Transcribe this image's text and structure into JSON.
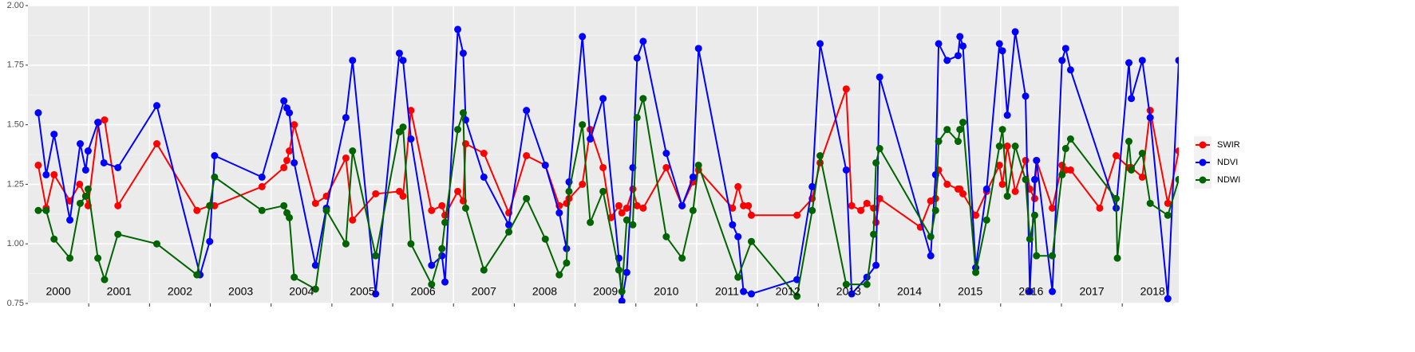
{
  "chart_data": {
    "type": "line",
    "xlim": [
      2000,
      2018.93
    ],
    "xticks": [
      2001,
      2002,
      2003,
      2004,
      2005,
      2006,
      2007,
      2008,
      2009,
      2010,
      2011,
      2012,
      2013,
      2014,
      2015,
      2016,
      2017,
      2018
    ],
    "year_labels": [
      "2000",
      "2001",
      "2002",
      "2003",
      "2004",
      "2005",
      "2006",
      "2007",
      "2008",
      "2009",
      "2010",
      "2011",
      "2012",
      "2013",
      "2014",
      "2015",
      "2016",
      "2017",
      "2018"
    ],
    "ylim": [
      0.75,
      2.0
    ],
    "yticks": [
      {
        "value": 0.75,
        "label": "0.75"
      },
      {
        "value": 1.0,
        "label": "1.00"
      },
      1.25,
      {
        "value": 1.5,
        "label": "1.50"
      },
      1.75,
      {
        "value": 2.0,
        "label": "2.00"
      }
    ],
    "grid": true,
    "legend": "right",
    "series": [
      {
        "name": "SWIR",
        "color": "#ff0000",
        "x": [
          2000.17,
          2000.3,
          2000.43,
          2000.69,
          2000.85,
          2000.95,
          2000.99,
          2001.16,
          2001.26,
          2001.48,
          2002.12,
          2002.78,
          2002.99,
          2003.07,
          2003.85,
          2004.21,
          2004.26,
          2004.3,
          2004.38,
          2004.73,
          2004.91,
          2005.23,
          2005.34,
          2005.72,
          2006.11,
          2006.17,
          2006.3,
          2006.64,
          2006.81,
          2006.86,
          2007.07,
          2007.16,
          2007.2,
          2007.5,
          2007.91,
          2008.2,
          2008.51,
          2008.74,
          2008.86,
          2008.9,
          2009.12,
          2009.25,
          2009.46,
          2009.59,
          2009.72,
          2009.77,
          2009.85,
          2009.95,
          2010.02,
          2010.12,
          2010.5,
          2010.76,
          2010.94,
          2011.03,
          2011.59,
          2011.68,
          2011.77,
          2011.85,
          2011.9,
          2012.65,
          2012.9,
          2013.03,
          2013.46,
          2013.55,
          2013.7,
          2013.8,
          2013.91,
          2013.95,
          2014.01,
          2014.68,
          2014.85,
          2014.93,
          2014.98,
          2015.12,
          2015.3,
          2015.33,
          2015.38,
          2015.59,
          2015.77,
          2015.98,
          2016.03,
          2016.11,
          2016.24,
          2016.41,
          2016.48,
          2016.56,
          2016.59,
          2016.85,
          2017.01,
          2017.07,
          2017.15,
          2017.63,
          2017.9,
          2018.11,
          2018.15,
          2018.33,
          2018.46,
          2018.75,
          2018.93
        ],
        "values": [
          1.33,
          1.15,
          1.29,
          1.18,
          1.25,
          1.2,
          1.16,
          1.51,
          1.52,
          1.16,
          1.42,
          1.14,
          1.16,
          1.16,
          1.24,
          1.32,
          1.35,
          1.39,
          1.5,
          1.17,
          1.2,
          1.36,
          1.1,
          1.21,
          1.22,
          1.2,
          1.56,
          1.14,
          1.16,
          1.12,
          1.22,
          1.18,
          1.42,
          1.38,
          1.13,
          1.37,
          1.33,
          1.16,
          1.17,
          1.19,
          1.25,
          1.48,
          1.32,
          1.11,
          1.16,
          1.13,
          1.15,
          1.23,
          1.16,
          1.15,
          1.32,
          1.16,
          1.26,
          1.31,
          1.15,
          1.24,
          1.16,
          1.16,
          1.12,
          1.12,
          1.19,
          1.34,
          1.65,
          1.16,
          1.14,
          1.17,
          1.15,
          1.09,
          1.19,
          1.07,
          1.18,
          1.19,
          1.31,
          1.25,
          1.23,
          1.23,
          1.21,
          1.12,
          1.22,
          1.33,
          1.25,
          1.41,
          1.22,
          1.35,
          1.23,
          1.19,
          1.35,
          1.15,
          1.33,
          1.31,
          1.31,
          1.15,
          1.37,
          1.32,
          1.32,
          1.28,
          1.56,
          1.17,
          1.39
        ]
      },
      {
        "name": "NDVI",
        "color": "#0000ff",
        "x": [
          2000.17,
          2000.3,
          2000.43,
          2000.69,
          2000.86,
          2000.95,
          2000.99,
          2001.15,
          2001.25,
          2001.48,
          2002.12,
          2002.83,
          2002.99,
          2003.07,
          2003.85,
          2004.21,
          2004.26,
          2004.3,
          2004.38,
          2004.73,
          2004.91,
          2005.23,
          2005.34,
          2005.72,
          2006.11,
          2006.17,
          2006.3,
          2006.64,
          2006.81,
          2006.86,
          2007.07,
          2007.16,
          2007.2,
          2007.5,
          2007.91,
          2008.2,
          2008.51,
          2008.74,
          2008.86,
          2008.9,
          2009.12,
          2009.25,
          2009.46,
          2009.72,
          2009.77,
          2009.85,
          2009.95,
          2010.02,
          2010.12,
          2010.5,
          2010.76,
          2010.94,
          2011.03,
          2011.59,
          2011.68,
          2011.77,
          2011.9,
          2012.65,
          2012.9,
          2013.03,
          2013.46,
          2013.55,
          2013.8,
          2013.95,
          2014.01,
          2014.85,
          2014.93,
          2014.98,
          2015.12,
          2015.3,
          2015.33,
          2015.38,
          2015.59,
          2015.77,
          2015.98,
          2016.03,
          2016.11,
          2016.24,
          2016.41,
          2016.48,
          2016.56,
          2016.59,
          2016.85,
          2017.01,
          2017.07,
          2017.15,
          2017.9,
          2018.11,
          2018.15,
          2018.33,
          2018.46,
          2018.75,
          2018.93
        ],
        "values": [
          1.55,
          1.29,
          1.46,
          1.1,
          1.42,
          1.31,
          1.39,
          1.51,
          1.34,
          1.32,
          1.58,
          0.87,
          1.01,
          1.37,
          1.28,
          1.6,
          1.57,
          1.55,
          1.34,
          0.91,
          1.15,
          1.53,
          1.77,
          0.79,
          1.8,
          1.77,
          1.44,
          0.91,
          0.95,
          0.84,
          1.9,
          1.8,
          1.52,
          1.28,
          1.08,
          1.56,
          1.33,
          1.13,
          0.98,
          1.26,
          1.87,
          1.44,
          1.61,
          0.94,
          0.76,
          0.88,
          1.32,
          1.78,
          1.85,
          1.38,
          1.16,
          1.28,
          1.82,
          1.08,
          1.03,
          0.8,
          0.79,
          0.85,
          1.24,
          1.84,
          1.31,
          0.79,
          0.86,
          0.91,
          1.7,
          0.95,
          1.29,
          1.84,
          1.77,
          1.79,
          1.87,
          1.83,
          0.9,
          1.23,
          1.84,
          1.81,
          1.54,
          1.89,
          1.62,
          0.8,
          1.27,
          1.35,
          0.8,
          1.77,
          1.82,
          1.73,
          1.15,
          1.76,
          1.61,
          1.77,
          1.53,
          0.77,
          1.77
        ]
      },
      {
        "name": "NDWI",
        "color": "#006400",
        "x": [
          2000.17,
          2000.3,
          2000.43,
          2000.69,
          2000.86,
          2000.95,
          2000.99,
          2001.15,
          2001.26,
          2001.48,
          2002.12,
          2002.78,
          2002.99,
          2003.07,
          2003.85,
          2004.21,
          2004.26,
          2004.3,
          2004.38,
          2004.73,
          2004.91,
          2005.23,
          2005.34,
          2005.72,
          2006.11,
          2006.17,
          2006.3,
          2006.64,
          2006.81,
          2006.86,
          2007.07,
          2007.16,
          2007.2,
          2007.5,
          2007.91,
          2008.2,
          2008.51,
          2008.74,
          2008.86,
          2008.9,
          2009.12,
          2009.25,
          2009.46,
          2009.72,
          2009.77,
          2009.85,
          2009.95,
          2010.02,
          2010.12,
          2010.5,
          2010.76,
          2010.94,
          2011.03,
          2011.68,
          2011.9,
          2012.65,
          2012.9,
          2013.03,
          2013.46,
          2013.8,
          2013.91,
          2013.95,
          2014.01,
          2014.85,
          2014.93,
          2014.98,
          2015.12,
          2015.3,
          2015.33,
          2015.38,
          2015.59,
          2015.77,
          2015.98,
          2016.03,
          2016.11,
          2016.24,
          2016.41,
          2016.48,
          2016.56,
          2016.59,
          2016.85,
          2017.01,
          2017.07,
          2017.15,
          2017.9,
          2017.92,
          2018.11,
          2018.15,
          2018.33,
          2018.46,
          2018.75,
          2018.93
        ],
        "values": [
          1.14,
          1.14,
          1.02,
          0.94,
          1.17,
          1.2,
          1.23,
          0.94,
          0.85,
          1.04,
          1.0,
          0.87,
          1.16,
          1.28,
          1.14,
          1.16,
          1.13,
          1.11,
          0.86,
          0.81,
          1.14,
          1.0,
          1.39,
          0.95,
          1.47,
          1.49,
          1.0,
          0.83,
          0.98,
          1.09,
          1.48,
          1.55,
          1.15,
          0.89,
          1.05,
          1.19,
          1.02,
          0.87,
          0.92,
          1.22,
          1.5,
          1.09,
          1.22,
          0.89,
          0.8,
          1.1,
          1.08,
          1.53,
          1.61,
          1.03,
          0.94,
          1.14,
          1.33,
          0.86,
          1.01,
          0.78,
          1.14,
          1.37,
          0.83,
          0.83,
          1.04,
          1.34,
          1.4,
          1.03,
          1.14,
          1.43,
          1.48,
          1.43,
          1.48,
          1.51,
          0.88,
          1.1,
          1.41,
          1.48,
          1.2,
          1.41,
          1.27,
          1.02,
          1.12,
          0.95,
          0.95,
          1.29,
          1.4,
          1.44,
          1.19,
          0.94,
          1.43,
          1.31,
          1.38,
          1.17,
          1.12,
          1.27
        ]
      }
    ]
  }
}
